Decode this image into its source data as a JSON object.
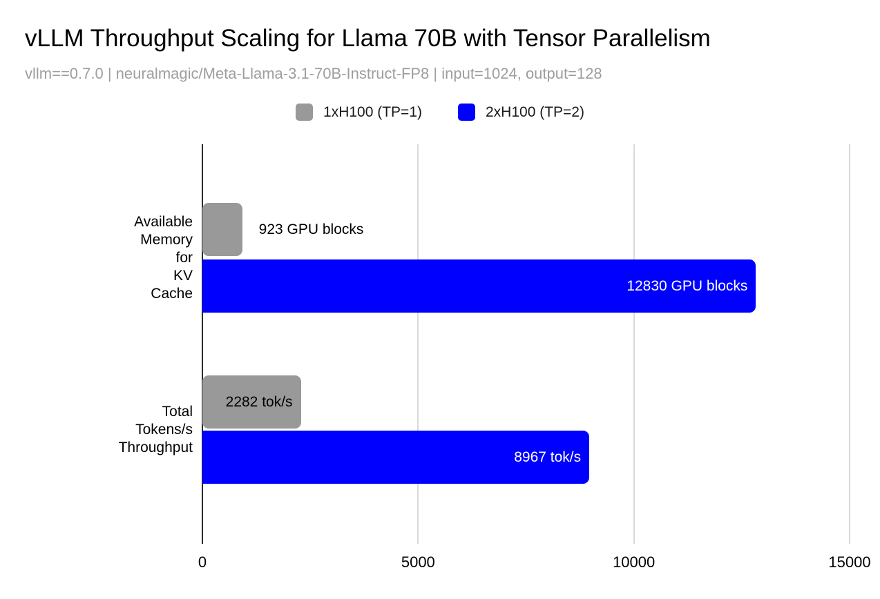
{
  "chart": {
    "title": "vLLM Throughput Scaling for Llama 70B with Tensor Parallelism",
    "subtitle": "vllm==0.7.0 | neuralmagic/Meta-Llama-3.1-70B-Instruct-FP8 | input=1024, output=128"
  },
  "chart_data": {
    "type": "bar",
    "orientation": "horizontal",
    "title": "vLLM Throughput Scaling for Llama 70B with Tensor Parallelism",
    "subtitle": "vllm==0.7.0 | neuralmagic/Meta-Llama-3.1-70B-Instruct-FP8 | input=1024, output=128",
    "categories": [
      "Available Memory for KV Cache",
      "Total Tokens/s Throughput"
    ],
    "category_lines": [
      [
        "Available Memory for",
        "KV Cache"
      ],
      [
        "Total Tokens/s",
        "Throughput"
      ]
    ],
    "series": [
      {
        "name": "1xH100 (TP=1)",
        "color": "#999999",
        "label_text_color": "#000000",
        "values": [
          923,
          2282
        ],
        "data_labels": [
          "923 GPU blocks",
          "2282 tok/s"
        ]
      },
      {
        "name": "2xH100 (TP=2)",
        "color": "#0000ff",
        "label_text_color": "#ffffff",
        "values": [
          12830,
          8967
        ],
        "data_labels": [
          "12830 GPU blocks",
          "8967 tok/s"
        ]
      }
    ],
    "x_axis": {
      "min": 0,
      "max": 15000,
      "ticks": [
        0,
        5000,
        10000,
        15000
      ],
      "tick_labels": [
        "0",
        "5000",
        "10000",
        "15000"
      ]
    },
    "grid": true,
    "legend_position": "top-center"
  },
  "colors": {
    "background": "#ffffff",
    "subtitle_text": "#9e9e9e",
    "gridline": "#d9d9d9",
    "axis_line": "#2b2b2b",
    "tick_text": "#000000"
  }
}
